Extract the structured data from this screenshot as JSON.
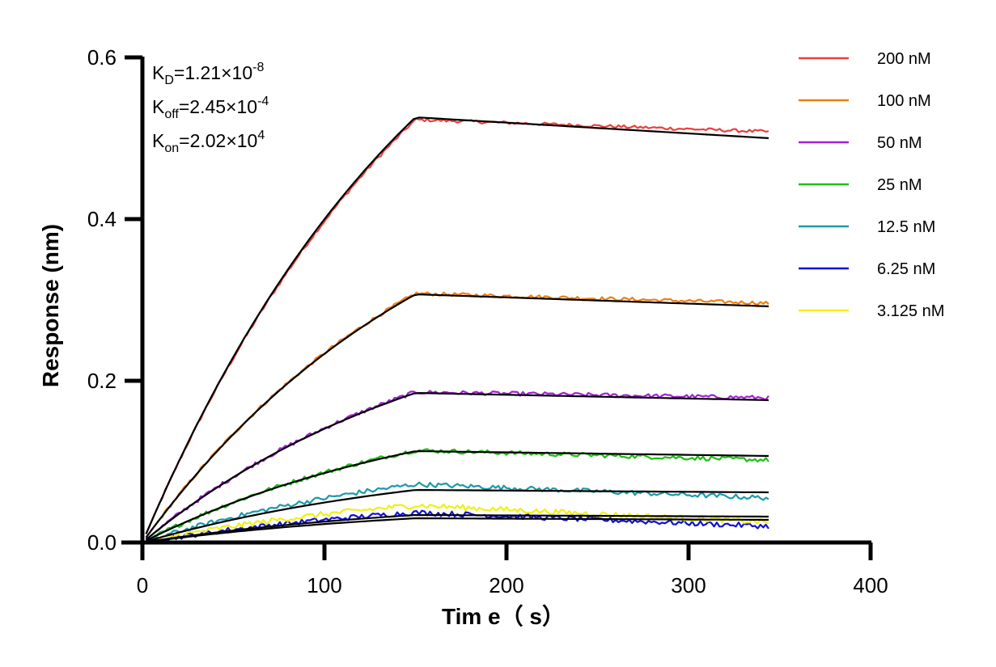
{
  "chart_data": {
    "type": "line",
    "xlabel": "Tim e（ s）",
    "ylabel": "Response (nm)",
    "xlim": [
      0,
      400
    ],
    "ylim": [
      0,
      0.6
    ],
    "xticks": [
      "0",
      "100",
      "200",
      "300",
      "400"
    ],
    "yticks": [
      "0.0",
      "0.2",
      "0.4",
      "0.6"
    ],
    "legend_position": "top-right",
    "grid": false,
    "annotations": [
      {
        "base": "K",
        "sub": "D",
        "value": "=1.21×10",
        "exp": "-8"
      },
      {
        "base": "K",
        "sub": "off",
        "value": "=2.45×10",
        "exp": "-4"
      },
      {
        "base": "K",
        "sub": "on",
        "value": "=2.02×10",
        "exp": "4"
      }
    ],
    "association_end_s": 150,
    "end_s": 345,
    "series": [
      {
        "name": "200 nM",
        "color": "#e8413c",
        "peak": 0.523,
        "end": 0.508,
        "fit_peak": 0.526,
        "fit_end": 0.5
      },
      {
        "name": "100 nM",
        "color": "#f07e10",
        "peak": 0.308,
        "end": 0.296,
        "fit_peak": 0.307,
        "fit_end": 0.292
      },
      {
        "name": "50 nM",
        "color": "#a51ed6",
        "peak": 0.186,
        "end": 0.179,
        "fit_peak": 0.185,
        "fit_end": 0.176
      },
      {
        "name": "25 nM",
        "color": "#1ebf14",
        "peak": 0.114,
        "end": 0.102,
        "fit_peak": 0.113,
        "fit_end": 0.107
      },
      {
        "name": "12.5 nM",
        "color": "#1c9aaa",
        "peak": 0.072,
        "end": 0.055,
        "fit_peak": 0.065,
        "fit_end": 0.062
      },
      {
        "name": "6.25 nM",
        "color": "#1010d8",
        "peak": 0.037,
        "end": 0.02,
        "fit_peak": 0.034,
        "fit_end": 0.032
      },
      {
        "name": "3.125 nM",
        "color": "#f0f014",
        "peak": 0.046,
        "end": 0.025,
        "fit_peak": 0.03,
        "fit_end": 0.028
      }
    ]
  }
}
